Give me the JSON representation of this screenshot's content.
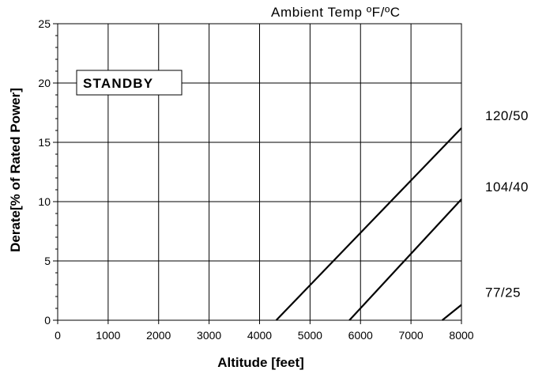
{
  "chart_data": {
    "type": "line",
    "title": "",
    "xlabel": "Altitude [feet]",
    "ylabel": "Derate[% of Rated Power]",
    "xlim": [
      0,
      8000
    ],
    "ylim": [
      0,
      25
    ],
    "x_ticks": [
      "0",
      "1000",
      "2000",
      "3000",
      "4000",
      "5000",
      "6000",
      "7000",
      "8000"
    ],
    "y_ticks": [
      "0",
      "5",
      "10",
      "15",
      "20",
      "25"
    ],
    "grid": true,
    "legend_title": "Ambient Temp ºF/ºC",
    "annotation": "STANDBY",
    "series": [
      {
        "name": "120/50",
        "x": [
          4330,
          8000
        ],
        "y": [
          0,
          16.2
        ]
      },
      {
        "name": "104/40",
        "x": [
          5780,
          8000
        ],
        "y": [
          0,
          10.2
        ]
      },
      {
        "name": "77/25",
        "x": [
          7620,
          8000
        ],
        "y": [
          0,
          1.3
        ]
      }
    ]
  }
}
